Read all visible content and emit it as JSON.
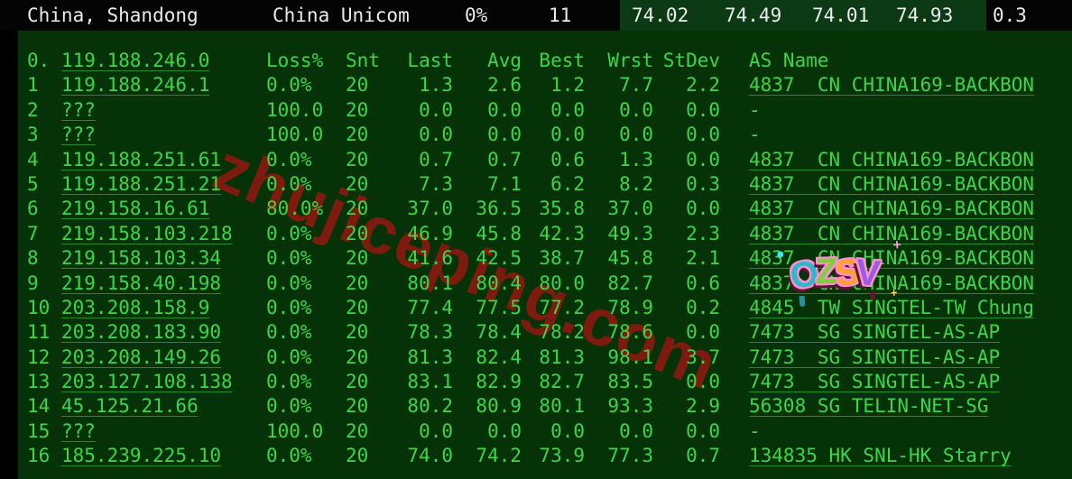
{
  "colors": {
    "terminal_bg": "#063208",
    "terminal_text": "#3cd648",
    "topbar_bg": "#040404",
    "topbar_text": "#ebebeb",
    "metrics_box_bg": "#0c3a15",
    "watermark_red": "#8e1a12",
    "sticker_letter_colors": [
      "#2fb8c9",
      "#7ed037",
      "#ffa22e",
      "#9a5ce0"
    ]
  },
  "topbar": {
    "location": "China, Shandong",
    "isp": "China Unicom",
    "loss": "0%",
    "count": "11",
    "metrics": [
      "74.02",
      "74.49",
      "74.01",
      "74.93"
    ],
    "extra": "0.3"
  },
  "table": {
    "source": {
      "hop": "0.",
      "host": "119.188.246.0"
    },
    "headers": [
      "Loss%",
      "Snt",
      "Last",
      "Avg",
      "Best",
      "Wrst",
      "StDev",
      "AS Name"
    ],
    "rows": [
      {
        "hop": "1",
        "host": "119.188.246.1",
        "loss": "0.0%",
        "snt": "20",
        "last": "1.3",
        "avg": "2.6",
        "best": "1.2",
        "wrst": "7.7",
        "stdev": "2.2",
        "asn": "4837  CN CHINA169-BACKBON"
      },
      {
        "hop": "2",
        "host": "???",
        "loss": "100.0",
        "snt": "20",
        "last": "0.0",
        "avg": "0.0",
        "best": "0.0",
        "wrst": "0.0",
        "stdev": "0.0",
        "asn": "-"
      },
      {
        "hop": "3",
        "host": "???",
        "loss": "100.0",
        "snt": "20",
        "last": "0.0",
        "avg": "0.0",
        "best": "0.0",
        "wrst": "0.0",
        "stdev": "0.0",
        "asn": "-"
      },
      {
        "hop": "4",
        "host": "119.188.251.61",
        "loss": "0.0%",
        "snt": "20",
        "last": "0.7",
        "avg": "0.7",
        "best": "0.6",
        "wrst": "1.3",
        "stdev": "0.0",
        "asn": "4837  CN CHINA169-BACKBON"
      },
      {
        "hop": "5",
        "host": "119.188.251.21",
        "loss": "0.0%",
        "snt": "20",
        "last": "7.3",
        "avg": "7.1",
        "best": "6.2",
        "wrst": "8.2",
        "stdev": "0.3",
        "asn": "4837  CN CHINA169-BACKBON"
      },
      {
        "hop": "6",
        "host": "219.158.16.61",
        "loss": "80.0%",
        "snt": "20",
        "last": "37.0",
        "avg": "36.5",
        "best": "35.8",
        "wrst": "37.0",
        "stdev": "0.0",
        "asn": "4837  CN CHINA169-BACKBON"
      },
      {
        "hop": "7",
        "host": "219.158.103.218",
        "loss": "0.0%",
        "snt": "20",
        "last": "46.9",
        "avg": "45.8",
        "best": "42.3",
        "wrst": "49.3",
        "stdev": "2.3",
        "asn": "4837  CN CHINA169-BACKBON"
      },
      {
        "hop": "8",
        "host": "219.158.103.34",
        "loss": "0.0%",
        "snt": "20",
        "last": "41.6",
        "avg": "42.5",
        "best": "38.7",
        "wrst": "45.8",
        "stdev": "2.1",
        "asn": "4837  CN CHINA169-BACKBON"
      },
      {
        "hop": "9",
        "host": "219.158.40.198",
        "loss": "0.0%",
        "snt": "20",
        "last": "80.1",
        "avg": "80.4",
        "best": "80.0",
        "wrst": "82.7",
        "stdev": "0.6",
        "asn": "4837  CN CHINA169-BACKBON"
      },
      {
        "hop": "10",
        "host": "203.208.158.9",
        "loss": "0.0%",
        "snt": "20",
        "last": "77.4",
        "avg": "77.5",
        "best": "77.2",
        "wrst": "78.9",
        "stdev": "0.2",
        "asn": "4845  TW SINGTEL-TW Chung"
      },
      {
        "hop": "11",
        "host": "203.208.183.90",
        "loss": "0.0%",
        "snt": "20",
        "last": "78.3",
        "avg": "78.4",
        "best": "78.2",
        "wrst": "78.6",
        "stdev": "0.0",
        "asn": "7473  SG SINGTEL-AS-AP"
      },
      {
        "hop": "12",
        "host": "203.208.149.26",
        "loss": "0.0%",
        "snt": "20",
        "last": "81.3",
        "avg": "82.4",
        "best": "81.3",
        "wrst": "98.1",
        "stdev": "3.7",
        "asn": "7473  SG SINGTEL-AS-AP"
      },
      {
        "hop": "13",
        "host": "203.127.108.138",
        "loss": "0.0%",
        "snt": "20",
        "last": "83.1",
        "avg": "82.9",
        "best": "82.7",
        "wrst": "83.5",
        "stdev": "0.0",
        "asn": "7473  SG SINGTEL-AS-AP"
      },
      {
        "hop": "14",
        "host": "45.125.21.66",
        "loss": "0.0%",
        "snt": "20",
        "last": "80.2",
        "avg": "80.9",
        "best": "80.1",
        "wrst": "93.3",
        "stdev": "2.9",
        "asn": "56308 SG TELIN-NET-SG"
      },
      {
        "hop": "15",
        "host": "???",
        "loss": "100.0",
        "snt": "20",
        "last": "0.0",
        "avg": "0.0",
        "best": "0.0",
        "wrst": "0.0",
        "stdev": "0.0",
        "asn": "-"
      },
      {
        "hop": "16",
        "host": "185.239.225.10",
        "loss": "0.0%",
        "snt": "20",
        "last": "74.0",
        "avg": "74.2",
        "best": "73.9",
        "wrst": "77.3",
        "stdev": "0.7",
        "asn": "134835 HK SNL-HK Starry"
      }
    ]
  },
  "watermark": {
    "text": "zhujiceping.com"
  },
  "sticker": {
    "text": "OZSV",
    "letters": [
      "O",
      "Z",
      "S",
      "V"
    ],
    "sparkle_plus": "+"
  }
}
